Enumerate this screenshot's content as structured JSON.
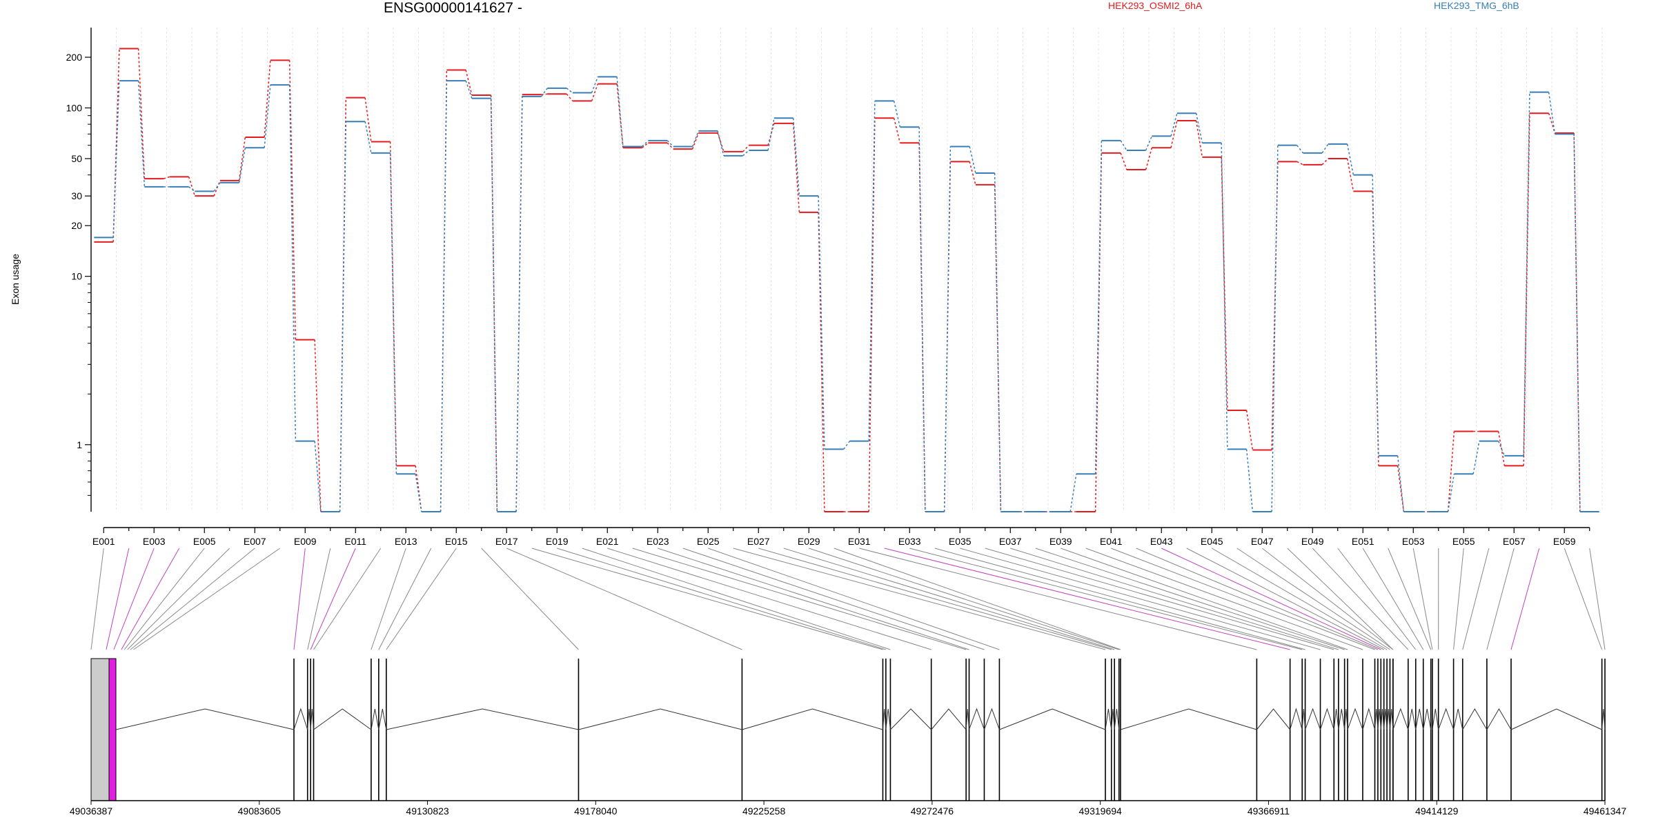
{
  "chart_data": {
    "type": "line",
    "title": "ENSG00000141627 -",
    "ylabel": "Exon usage",
    "yscale": "log",
    "ylim": [
      0.4,
      300
    ],
    "yticks": [
      1,
      10,
      20,
      30,
      50,
      100,
      200
    ],
    "legend": [
      "HEK293_OSMI2_6hA",
      "HEK293_TMG_6hB"
    ],
    "colors": {
      "HEK293_OSMI2_6hA": "#e41a1c",
      "HEK293_TMG_6hB": "#377eb8"
    },
    "exon_tick_labels": [
      "E001",
      "E003",
      "E005",
      "E007",
      "E009",
      "E011",
      "E013",
      "E015",
      "E017",
      "E019",
      "E021",
      "E023",
      "E025",
      "E027",
      "E029",
      "E031",
      "E033",
      "E035",
      "E037",
      "E039",
      "E041",
      "E043",
      "E045",
      "E047",
      "E049",
      "E051",
      "E053",
      "E055",
      "E057",
      "E059"
    ],
    "exons": [
      "E001",
      "E002",
      "E003",
      "E004",
      "E005",
      "E006",
      "E007",
      "E008",
      "E009",
      "E010",
      "E011",
      "E012",
      "E013",
      "E014",
      "E015",
      "E016",
      "E017",
      "E018",
      "E019",
      "E020",
      "E021",
      "E022",
      "E023",
      "E024",
      "E025",
      "E026",
      "E027",
      "E028",
      "E029",
      "E030",
      "E031",
      "E032",
      "E033",
      "E034",
      "E035",
      "E036",
      "E037",
      "E038",
      "E039",
      "E040",
      "E041",
      "E042",
      "E043",
      "E044",
      "E045",
      "E046",
      "E047",
      "E048",
      "E049",
      "E050",
      "E051",
      "E052",
      "E053",
      "E054",
      "E055",
      "E056",
      "E057",
      "E058",
      "E059",
      "E060"
    ],
    "series": [
      {
        "name": "HEK293_OSMI2_6hA",
        "values": [
          16,
          225,
          38,
          39,
          30,
          37,
          67,
          192,
          4.2,
          0.4,
          115,
          63,
          0.75,
          0.4,
          168,
          119,
          0.4,
          120,
          121,
          110,
          139,
          58,
          62,
          57,
          71,
          55,
          60,
          81,
          24,
          0.4,
          0.4,
          87,
          62,
          0.4,
          48,
          35,
          0.4,
          0.4,
          0.4,
          0.4,
          54,
          43,
          58,
          84,
          51,
          1.6,
          0.93,
          48,
          46,
          50,
          32,
          0.75,
          0.4,
          0.4,
          1.2,
          1.2,
          0.75,
          93,
          71,
          0.4
        ]
      },
      {
        "name": "HEK293_TMG_6hB",
        "values": [
          17,
          145,
          34,
          34,
          32,
          36,
          58,
          137,
          1.05,
          0.4,
          83,
          54,
          0.67,
          0.4,
          145,
          114,
          0.4,
          117,
          131,
          123,
          153,
          59,
          64,
          59,
          73,
          52,
          56,
          87,
          30,
          0.94,
          1.05,
          110,
          77,
          0.4,
          59,
          41,
          0.4,
          0.4,
          0.4,
          0.67,
          64,
          56,
          68,
          93,
          62,
          0.94,
          0.4,
          60,
          54,
          61,
          40,
          0.86,
          0.4,
          0.4,
          0.67,
          1.05,
          0.86,
          124,
          70,
          0.4
        ]
      }
    ],
    "genomic_axis_labels": [
      "49036387",
      "49083605",
      "49130823",
      "49178040",
      "49225258",
      "49272476",
      "49319694",
      "49366911",
      "49414129",
      "49461347"
    ],
    "gene_model": {
      "start": 49036387,
      "end": 49461347,
      "exon_color": "#000000",
      "highlight_color": "#e020e0",
      "utr_color": "#cccccc"
    }
  }
}
